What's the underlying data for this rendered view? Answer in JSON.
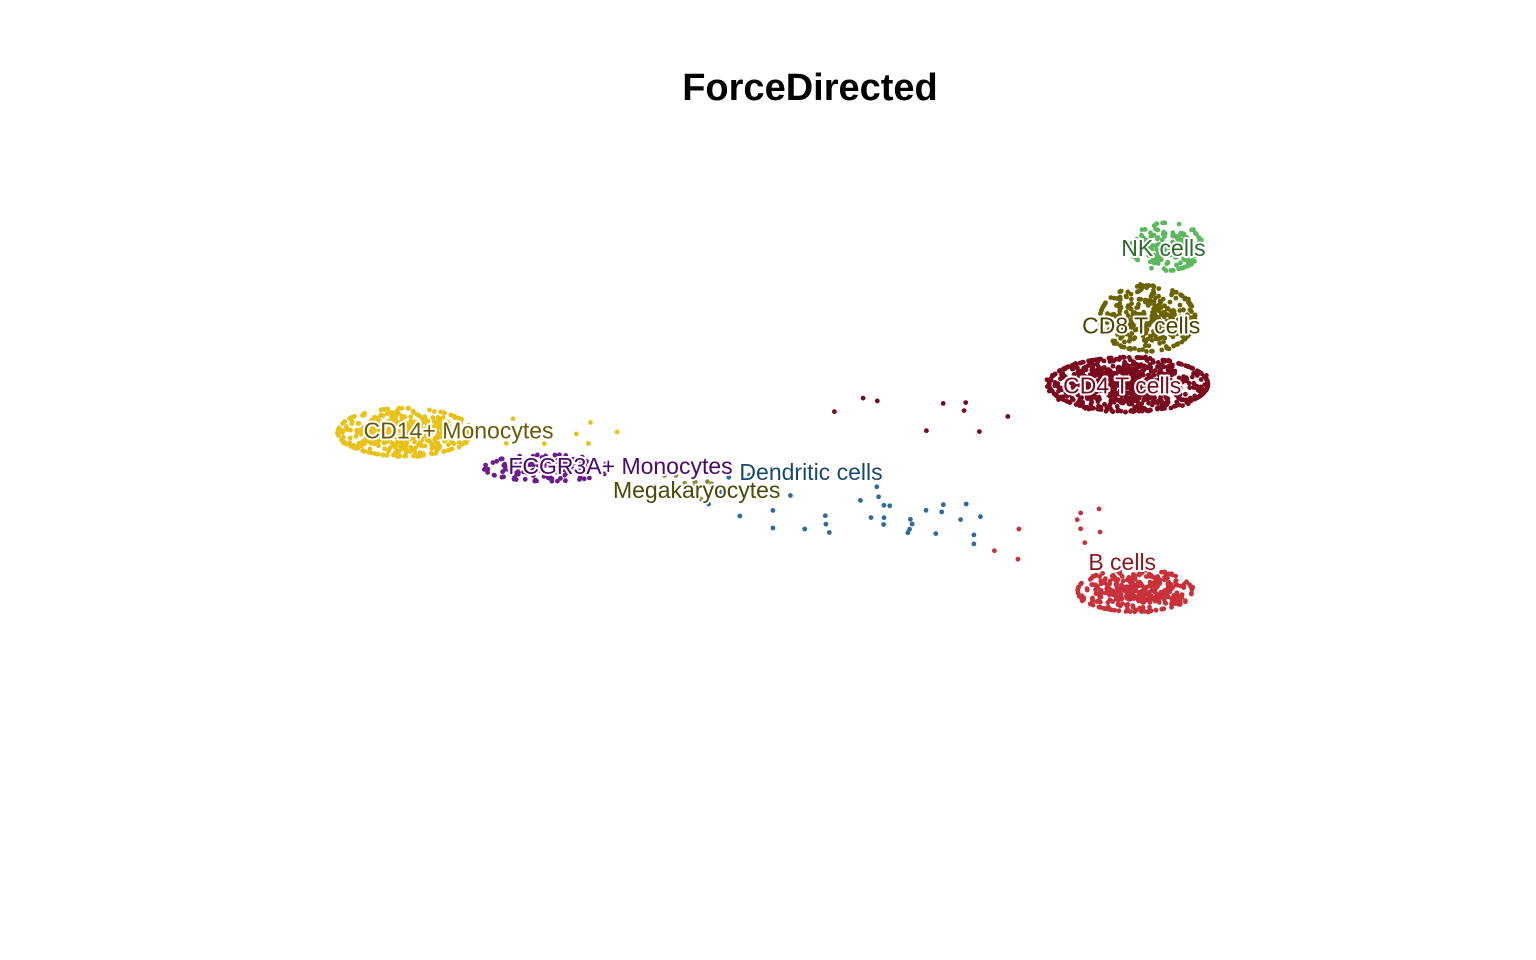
{
  "chart_data": {
    "type": "scatter",
    "title": "ForceDirected",
    "xlabel": "",
    "ylabel": "",
    "axes_visible": false,
    "grid": false,
    "legend": "none",
    "xlim": [
      -10,
      10
    ],
    "ylim": [
      -6,
      6
    ],
    "clusters": [
      {
        "name": "CD4 T cells",
        "color": "#7a0a1e",
        "label_color": "#7a0a1e",
        "center": [
          5.0,
          1.75
        ],
        "spread": [
          1.25,
          0.45
        ],
        "count": 900
      },
      {
        "name": "CD8 T cells",
        "color": "#6b6300",
        "label_color": "#4a4400",
        "center": [
          5.3,
          2.85
        ],
        "spread": [
          0.75,
          0.55
        ],
        "count": 320
      },
      {
        "name": "NK cells",
        "color": "#5cb85c",
        "label_color": "#2e6b2e",
        "center": [
          5.6,
          4.05
        ],
        "spread": [
          0.55,
          0.4
        ],
        "count": 170
      },
      {
        "name": "B cells",
        "color": "#c8313a",
        "label_color": "#8a1a22",
        "center": [
          5.1,
          -1.7
        ],
        "spread": [
          0.9,
          0.35
        ],
        "count": 360
      },
      {
        "name": "CD14+ Monocytes",
        "color": "#e8c21a",
        "label_color": "#6b5a0a",
        "center": [
          -6.4,
          0.95
        ],
        "spread": [
          1.05,
          0.4
        ],
        "count": 480
      },
      {
        "name": "FCGR3A+ Monocytes",
        "color": "#6a1c8a",
        "label_color": "#4a0a6a",
        "center": [
          -4.15,
          0.35
        ],
        "spread": [
          1.0,
          0.22
        ],
        "count": 150
      },
      {
        "name": "Megakaryocytes",
        "color": "#8c8a3c",
        "label_color": "#4a4a0a",
        "center": [
          -1.9,
          0.1
        ],
        "spread": [
          0.5,
          0.3
        ],
        "count": 12
      },
      {
        "name": "Dendritic cells",
        "color": "#2e6b9a",
        "label_color": "#1a4a6b",
        "center": [
          0.5,
          -0.3
        ],
        "spread": [
          2.2,
          0.5
        ],
        "count": 35
      }
    ],
    "labels": [
      {
        "text": "NK cells",
        "x": 5.55,
        "y": 4.0
      },
      {
        "text": "CD8 T cells",
        "x": 5.2,
        "y": 2.7
      },
      {
        "text": "CD4 T cells",
        "x": 4.9,
        "y": 1.7
      },
      {
        "text": "B cells",
        "x": 4.9,
        "y": -1.25
      },
      {
        "text": "CD14+ Monocytes",
        "x": -5.55,
        "y": 0.95
      },
      {
        "text": "FCGR3A+ Monocytes",
        "x": -3.0,
        "y": 0.35
      },
      {
        "text": "Megakaryocytes",
        "x": -1.8,
        "y": -0.05
      },
      {
        "text": "Dendritic cells",
        "x": 0.0,
        "y": 0.25
      }
    ]
  }
}
